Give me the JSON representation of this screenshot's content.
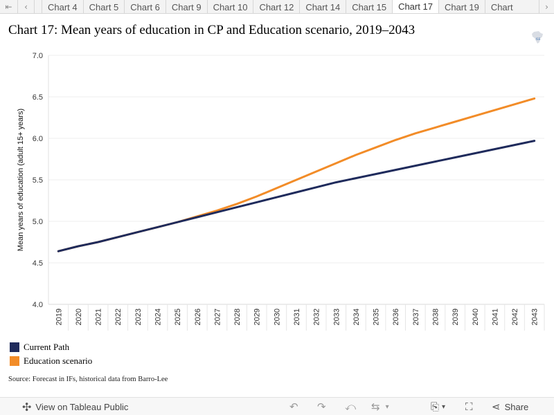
{
  "tabbar": {
    "tabs": [
      "Chart 4",
      "Chart 5",
      "Chart 6",
      "Chart 9",
      "Chart 10",
      "Chart 12",
      "Chart 14",
      "Chart 15",
      "Chart 17",
      "Chart 19",
      "Chart"
    ],
    "active_index": 8
  },
  "title": "Chart 17: Mean years of education in CP and Education scenario, 2019–2043",
  "chart_data": {
    "type": "line",
    "title": "Chart 17: Mean years of education in CP and Education scenario, 2019–2043",
    "xlabel": "",
    "ylabel": "Mean years of education (adult 15+ years)",
    "ylim": [
      4.0,
      7.0
    ],
    "yticks": [
      "4.0",
      "4.5",
      "5.0",
      "5.5",
      "6.0",
      "6.5",
      "7.0"
    ],
    "x": [
      2019,
      2020,
      2021,
      2022,
      2023,
      2024,
      2025,
      2026,
      2027,
      2028,
      2029,
      2030,
      2031,
      2032,
      2033,
      2034,
      2035,
      2036,
      2037,
      2038,
      2039,
      2040,
      2041,
      2042,
      2043
    ],
    "series": [
      {
        "name": "Current Path",
        "color": "#1f2b5c",
        "values": [
          4.64,
          4.7,
          4.75,
          4.81,
          4.87,
          4.93,
          4.99,
          5.05,
          5.11,
          5.17,
          5.23,
          5.29,
          5.35,
          5.41,
          5.47,
          5.52,
          5.57,
          5.62,
          5.67,
          5.72,
          5.77,
          5.82,
          5.87,
          5.92,
          5.97
        ]
      },
      {
        "name": "Education scenario",
        "color": "#f28c28",
        "values": [
          4.64,
          4.7,
          4.75,
          4.81,
          4.87,
          4.93,
          4.99,
          5.06,
          5.13,
          5.21,
          5.3,
          5.4,
          5.5,
          5.6,
          5.7,
          5.8,
          5.89,
          5.98,
          6.06,
          6.13,
          6.2,
          6.27,
          6.34,
          6.41,
          6.48
        ]
      }
    ],
    "grid": true,
    "legend": "bottom-left"
  },
  "legend": {
    "items": [
      {
        "label": "Current Path",
        "color": "#1f2b5c"
      },
      {
        "label": "Education scenario",
        "color": "#f28c28"
      }
    ]
  },
  "source": "Source: Forecast in IFs, historical data from Barro-Lee",
  "toolbar": {
    "view_label": "View on Tableau Public",
    "share_label": "Share",
    "icons": [
      "tableau-icon",
      "undo-icon",
      "redo-icon",
      "revert-icon",
      "refresh-icon",
      "download-icon",
      "fullscreen-icon",
      "share-icon"
    ]
  }
}
